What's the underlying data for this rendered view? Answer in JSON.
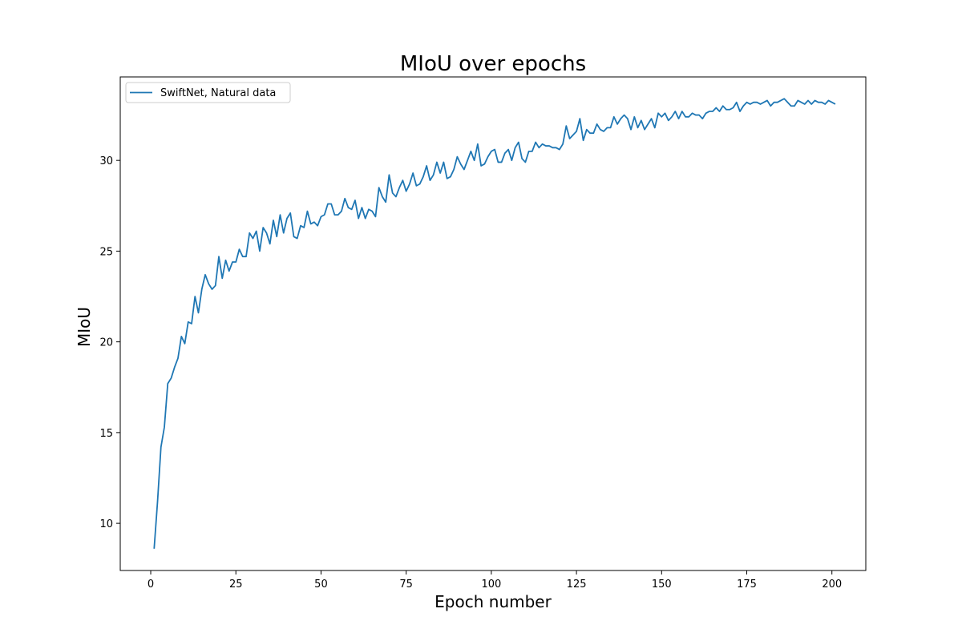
{
  "chart_data": {
    "type": "line",
    "title": "MIoU over epochs",
    "xlabel": "Epoch number",
    "ylabel": "MIoU",
    "xlim": [
      -8.95,
      209.95
    ],
    "ylim": [
      7.4,
      34.6
    ],
    "xticks": [
      0,
      25,
      50,
      75,
      100,
      125,
      150,
      175,
      200
    ],
    "yticks": [
      10,
      15,
      20,
      25,
      30
    ],
    "grid": false,
    "legend_position": "top-left",
    "series": [
      {
        "name": "SwiftNet, Natural data",
        "color": "#1f77b4",
        "x_start": 1,
        "x_step": 1,
        "values": [
          8.6,
          11.2,
          14.2,
          15.3,
          17.7,
          18.0,
          18.6,
          19.1,
          20.3,
          19.9,
          21.1,
          21.0,
          22.5,
          21.6,
          22.9,
          23.7,
          23.2,
          22.9,
          23.1,
          24.7,
          23.5,
          24.5,
          23.9,
          24.4,
          24.4,
          25.1,
          24.7,
          24.7,
          26.0,
          25.7,
          26.1,
          25.0,
          26.3,
          26.0,
          25.4,
          26.7,
          25.8,
          27.0,
          26.0,
          26.8,
          27.1,
          25.8,
          25.7,
          26.4,
          26.3,
          27.2,
          26.5,
          26.6,
          26.4,
          26.9,
          27.0,
          27.6,
          27.6,
          27.0,
          27.0,
          27.2,
          27.9,
          27.4,
          27.3,
          27.8,
          26.8,
          27.4,
          26.8,
          27.3,
          27.2,
          26.9,
          28.5,
          28.0,
          27.7,
          29.2,
          28.2,
          28.0,
          28.5,
          28.9,
          28.3,
          28.7,
          29.3,
          28.6,
          28.7,
          29.1,
          29.7,
          28.9,
          29.2,
          29.9,
          29.3,
          29.9,
          29.0,
          29.1,
          29.5,
          30.2,
          29.8,
          29.5,
          30.0,
          30.5,
          30.0,
          30.9,
          29.7,
          29.8,
          30.2,
          30.5,
          30.6,
          29.9,
          29.9,
          30.4,
          30.6,
          30.0,
          30.7,
          31.0,
          30.1,
          29.9,
          30.5,
          30.5,
          31.0,
          30.7,
          30.9,
          30.8,
          30.8,
          30.7,
          30.7,
          30.6,
          30.9,
          31.9,
          31.2,
          31.4,
          31.6,
          32.3,
          31.1,
          31.7,
          31.5,
          31.5,
          32.0,
          31.7,
          31.6,
          31.8,
          31.8,
          32.4,
          32.0,
          32.3,
          32.5,
          32.3,
          31.7,
          32.4,
          31.8,
          32.2,
          31.7,
          32.0,
          32.3,
          31.8,
          32.6,
          32.4,
          32.6,
          32.2,
          32.4,
          32.7,
          32.3,
          32.7,
          32.4,
          32.4,
          32.6,
          32.5,
          32.5,
          32.3,
          32.6,
          32.7,
          32.7,
          32.9,
          32.7,
          33.0,
          32.8,
          32.8,
          32.9,
          33.2,
          32.7,
          33.0,
          33.2,
          33.1,
          33.2,
          33.2,
          33.1,
          33.2,
          33.3,
          33.0,
          33.2,
          33.2,
          33.3,
          33.4,
          33.2,
          33.0,
          33.0,
          33.3,
          33.2,
          33.1,
          33.3,
          33.1,
          33.3,
          33.2,
          33.2,
          33.1,
          33.3,
          33.2,
          33.1
        ]
      }
    ]
  }
}
